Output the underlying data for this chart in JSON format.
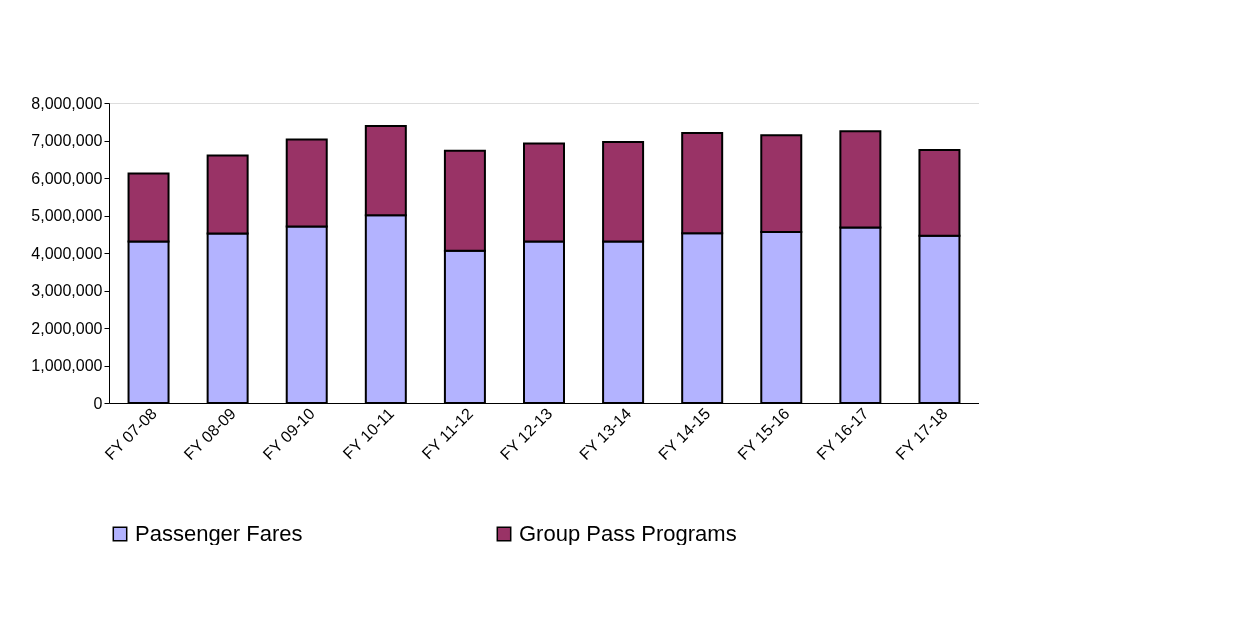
{
  "chart_data": {
    "type": "bar",
    "stacked": true,
    "categories": [
      "FY 07-08",
      "FY 08-09",
      "FY 09-10",
      "FY 10-11",
      "FY 11-12",
      "FY 12-13",
      "FY 13-14",
      "FY 14-15",
      "FY 15-16",
      "FY 16-17",
      "FY 17-18"
    ],
    "series": [
      {
        "name": "Passenger Fares",
        "color": "#b3b3ff",
        "values": [
          4310000,
          4520000,
          4710000,
          5010000,
          4060000,
          4310000,
          4310000,
          4530000,
          4560000,
          4680000,
          4460000
        ]
      },
      {
        "name": "Group Pass Programs",
        "color": "#993366",
        "values": [
          1810000,
          2080000,
          2320000,
          2380000,
          2670000,
          2610000,
          2650000,
          2670000,
          2580000,
          2570000,
          2290000
        ]
      }
    ],
    "ylim": [
      0,
      8000000
    ],
    "yticks": [
      0,
      {
        "value": 1000000,
        "label": "1,000,000"
      },
      {
        "value": 2000000,
        "label": "2,000,000"
      },
      {
        "value": 3000000,
        "label": "3,000,000"
      },
      {
        "value": 4000000,
        "label": "4,000,000"
      },
      {
        "value": 5000000,
        "label": "5,000,000"
      },
      {
        "value": 6000000,
        "label": "6,000,000"
      },
      {
        "value": 7000000,
        "label": "7,000,000"
      },
      {
        "value": 8000000,
        "label": "8,000,000"
      }
    ],
    "grid": false,
    "legend": "bottom"
  }
}
